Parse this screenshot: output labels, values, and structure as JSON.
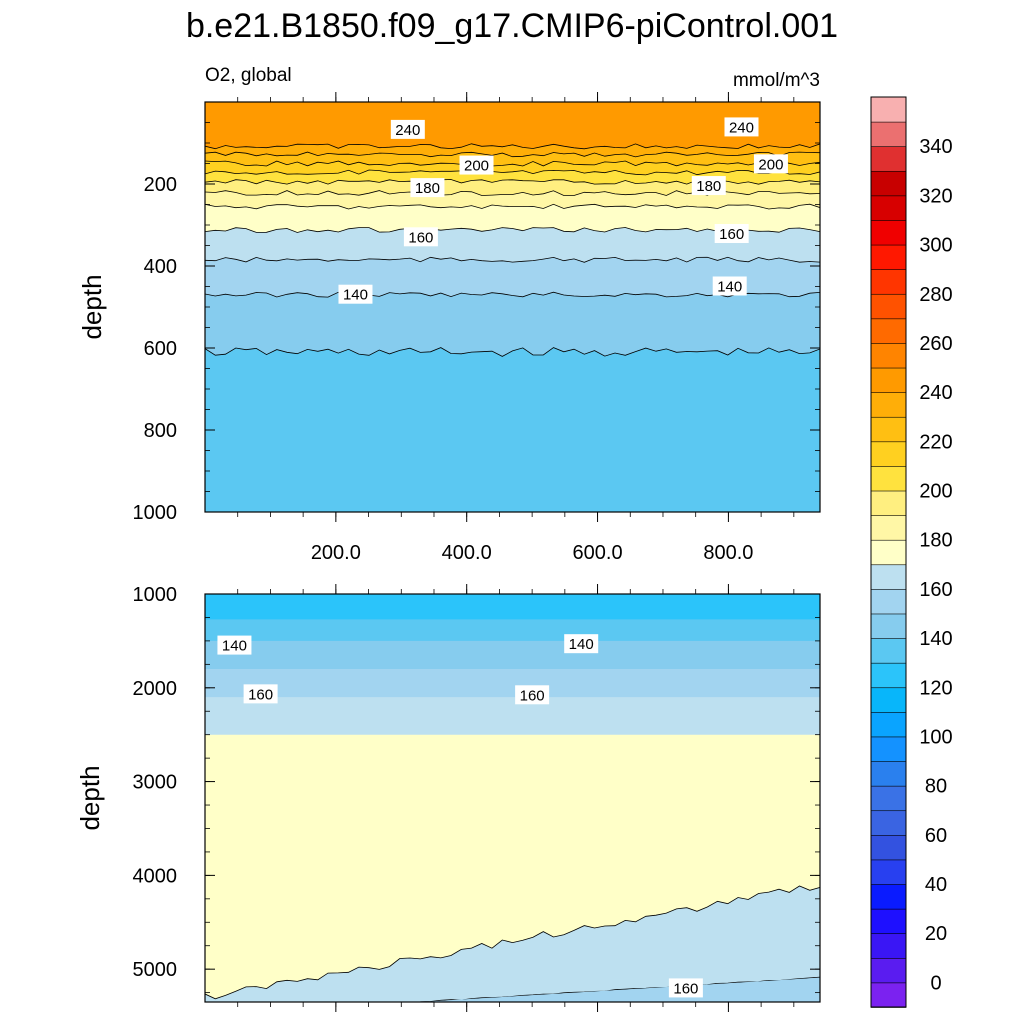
{
  "title": "b.e21.B1850.f09_g17.CMIP6-piControl.001",
  "chart_data": {
    "type": "contour",
    "variable": "O2, global",
    "units": "mmol/m^3",
    "x_range": [
      0,
      940
    ],
    "x_ticks": [
      "200.0",
      "400.0",
      "600.0",
      "800.0"
    ],
    "colorbar": {
      "levels": [
        -10,
        0,
        10,
        20,
        30,
        40,
        50,
        60,
        70,
        80,
        90,
        100,
        110,
        120,
        130,
        140,
        150,
        160,
        170,
        180,
        190,
        200,
        210,
        220,
        230,
        240,
        250,
        260,
        270,
        280,
        290,
        300,
        310,
        320,
        330,
        340,
        350,
        360
      ],
      "colors": [
        "#7b22f0",
        "#5a1cf0",
        "#3a16f5",
        "#1e10ff",
        "#0a1bff",
        "#2840f0",
        "#3352e0",
        "#3a64e2",
        "#3a72e6",
        "#2a80ee",
        "#1492ff",
        "#0aa4ff",
        "#08b6fa",
        "#2bc4fa",
        "#5bc8f2",
        "#86ccee",
        "#a2d4f0",
        "#bde0f0",
        "#ffffc8",
        "#fff7a6",
        "#ffef80",
        "#ffe23e",
        "#ffd020",
        "#ffbf12",
        "#ffae08",
        "#ff9a00",
        "#ff8400",
        "#ff6a00",
        "#ff5200",
        "#ff3500",
        "#ff1800",
        "#f00000",
        "#d70000",
        "#c80000",
        "#e03030",
        "#eb7070",
        "#f8b0b0"
      ],
      "tick_labels": [
        "0",
        "20",
        "40",
        "60",
        "80",
        "100",
        "120",
        "140",
        "160",
        "180",
        "200",
        "220",
        "240",
        "260",
        "280",
        "300",
        "320",
        "340"
      ]
    },
    "panels": [
      {
        "name": "upper",
        "ylabel": "depth",
        "y_range": [
          0,
          1000
        ],
        "y_ticks": [
          "200",
          "400",
          "600",
          "800",
          "1000"
        ],
        "layers": [
          {
            "value": 130,
            "top": 0,
            "bottom": 1000
          },
          {
            "value": 140,
            "top": 0,
            "bottom": 610
          },
          {
            "value": 150,
            "top": 0,
            "bottom": 470
          },
          {
            "value": 160,
            "top": 0,
            "bottom": 385
          },
          {
            "value": 170,
            "top": 0,
            "bottom": 312
          },
          {
            "value": 180,
            "top": 0,
            "bottom": 255
          },
          {
            "value": 190,
            "top": 0,
            "bottom": 222
          },
          {
            "value": 200,
            "top": 0,
            "bottom": 195
          },
          {
            "value": 210,
            "top": 0,
            "bottom": 172
          },
          {
            "value": 220,
            "top": 0,
            "bottom": 150
          },
          {
            "value": 230,
            "top": 0,
            "bottom": 128
          },
          {
            "value": 240,
            "top": 0,
            "bottom": 108
          }
        ],
        "contour_labels": [
          {
            "text": "240",
            "x": 310,
            "y": 68
          },
          {
            "text": "240",
            "x": 820,
            "y": 62
          },
          {
            "text": "200",
            "x": 415,
            "y": 155
          },
          {
            "text": "200",
            "x": 865,
            "y": 152
          },
          {
            "text": "180",
            "x": 340,
            "y": 210
          },
          {
            "text": "180",
            "x": 770,
            "y": 205
          },
          {
            "text": "160",
            "x": 330,
            "y": 330
          },
          {
            "text": "160",
            "x": 805,
            "y": 322
          },
          {
            "text": "140",
            "x": 230,
            "y": 470
          },
          {
            "text": "140",
            "x": 802,
            "y": 450
          }
        ]
      },
      {
        "name": "lower",
        "ylabel": "depth",
        "y_range": [
          1000,
          5350
        ],
        "y_ticks": [
          "1000",
          "2000",
          "3000",
          "4000",
          "5000"
        ],
        "layers": [
          {
            "value": 120,
            "top": 1000,
            "bottom": 5350
          },
          {
            "value": 130,
            "top": 1270,
            "bottom": 5350
          },
          {
            "value": 140,
            "top": 1500,
            "bottom": 5350
          },
          {
            "value": 150,
            "top": 1800,
            "bottom": 5350
          },
          {
            "value": 160,
            "top": 2100,
            "bottom": 5350
          },
          {
            "value": 170,
            "top": 2500,
            "bottom": 4800
          }
        ],
        "contour_labels": [
          {
            "text": "140",
            "x": 45,
            "y": 1550
          },
          {
            "text": "140",
            "x": 575,
            "y": 1535
          },
          {
            "text": "160",
            "x": 85,
            "y": 2070
          },
          {
            "text": "160",
            "x": 500,
            "y": 2080
          },
          {
            "text": "160",
            "x": 735,
            "y": 5205
          }
        ]
      }
    ]
  }
}
